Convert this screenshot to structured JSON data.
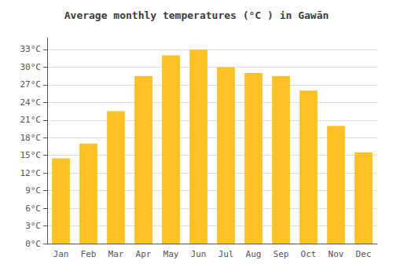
{
  "chart_data": {
    "type": "bar",
    "title": "Average monthly temperatures (°C ) in Gawān",
    "categories": [
      "Jan",
      "Feb",
      "Mar",
      "Apr",
      "May",
      "Jun",
      "Jul",
      "Aug",
      "Sep",
      "Oct",
      "Nov",
      "Dec"
    ],
    "values": [
      14.5,
      17.0,
      22.5,
      28.5,
      32.0,
      33.0,
      30.0,
      29.0,
      28.5,
      26.0,
      20.0,
      15.5
    ],
    "color": "#FFC125",
    "ylim": [
      0,
      35
    ],
    "yticks": [
      {
        "value": 0,
        "label": "0°C"
      },
      {
        "value": 3,
        "label": "3°C"
      },
      {
        "value": 6,
        "label": "6°C"
      },
      {
        "value": 9,
        "label": "9°C"
      },
      {
        "value": 12,
        "label": "12°C"
      },
      {
        "value": 15,
        "label": "15°C"
      },
      {
        "value": 18,
        "label": "18°C"
      },
      {
        "value": 21,
        "label": "21°C"
      },
      {
        "value": 24,
        "label": "24°C"
      },
      {
        "value": 27,
        "label": "27°C"
      },
      {
        "value": 30,
        "label": "30°C"
      },
      {
        "value": 33,
        "label": "33°C"
      }
    ],
    "grid": true
  }
}
